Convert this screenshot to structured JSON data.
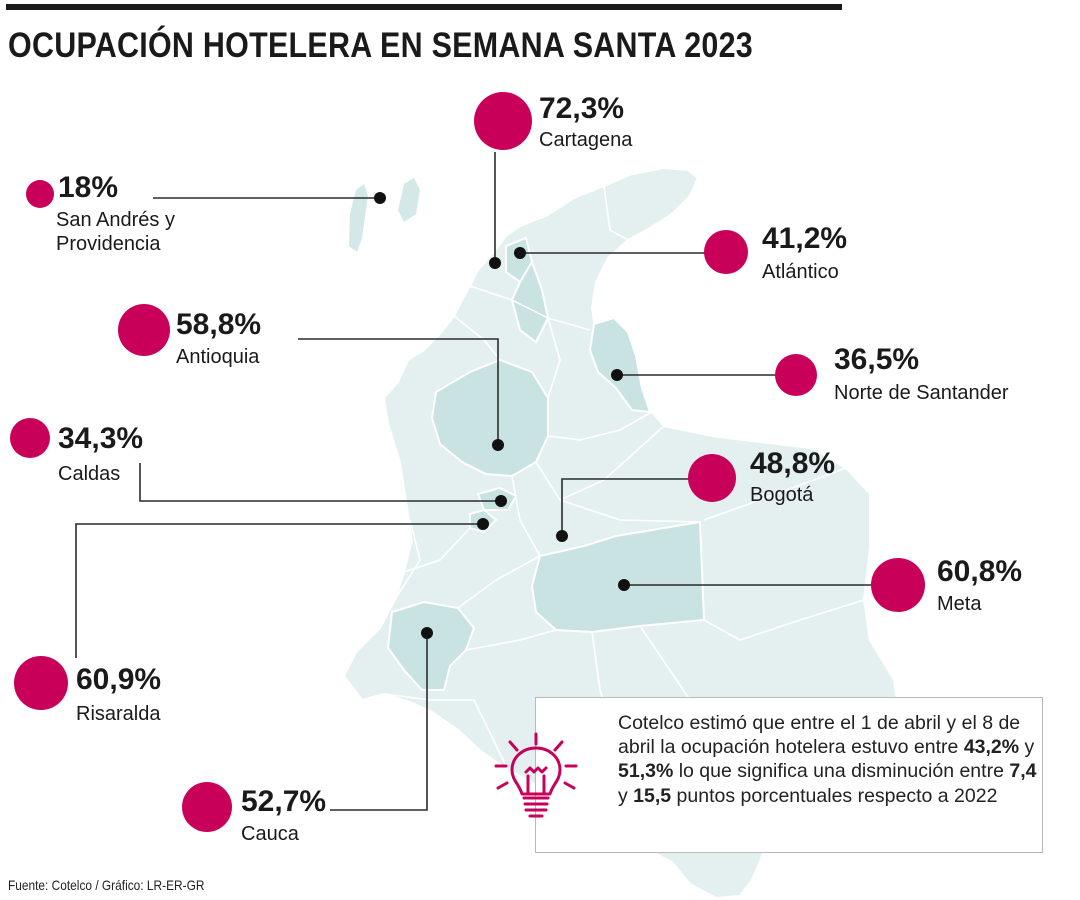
{
  "title": "OCUPACIÓN HOTELERA EN SEMANA SANTA 2023",
  "colors": {
    "accent": "#c8005a",
    "map_fill": "#e4f0f0",
    "map_highlight": "#c9e2e2",
    "map_border": "#ffffff"
  },
  "locations": [
    {
      "pct": "72,3%",
      "name": "Cartagena"
    },
    {
      "pct": "18%",
      "name": "San Andrés y Providencia"
    },
    {
      "pct": "41,2%",
      "name": "Atlántico"
    },
    {
      "pct": "58,8%",
      "name": "Antioquia"
    },
    {
      "pct": "36,5%",
      "name": "Norte de Santander"
    },
    {
      "pct": "34,3%",
      "name": "Caldas"
    },
    {
      "pct": "48,8%",
      "name": "Bogotá"
    },
    {
      "pct": "60,8%",
      "name": "Meta"
    },
    {
      "pct": "60,9%",
      "name": "Risaralda"
    },
    {
      "pct": "52,7%",
      "name": "Cauca"
    }
  ],
  "note": {
    "icon": "lightbulb-icon",
    "t1": "Cotelco estimó que entre el 1 de abril y el 8 de abril la ocupación hotelera estuvo entre ",
    "v1": "43,2%",
    "t2": " y ",
    "v2": "51,3%",
    "t3": " lo que significa una disminución entre ",
    "v3": "7,4",
    "t4": " y ",
    "v4": "15,5",
    "t5": " puntos porcentuales respecto a 2022"
  },
  "source": "Fuente: Cotelco / Gráfico: LR-ER-GR"
}
